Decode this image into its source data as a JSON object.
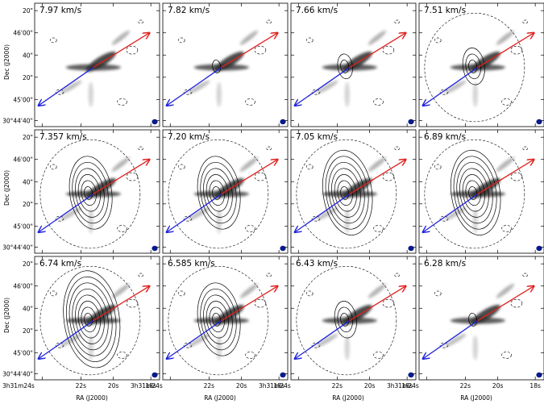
{
  "figure": {
    "panels": [
      {
        "velocity": "7.97 km/s",
        "contour_level": 0
      },
      {
        "velocity": "7.82 km/s",
        "contour_level": 1
      },
      {
        "velocity": "7.66 km/s",
        "contour_level": 2
      },
      {
        "velocity": "7.51 km/s",
        "contour_level": 3
      },
      {
        "velocity": "7.357 km/s",
        "contour_level": 6
      },
      {
        "velocity": "7.20 km/s",
        "contour_level": 6
      },
      {
        "velocity": "7.05 km/s",
        "contour_level": 7
      },
      {
        "velocity": "6.89 km/s",
        "contour_level": 7
      },
      {
        "velocity": "6.74 km/s",
        "contour_level": 8
      },
      {
        "velocity": "6.585 km/s",
        "contour_level": 6
      },
      {
        "velocity": "6.43 km/s",
        "contour_level": 3
      },
      {
        "velocity": "6.28 km/s",
        "contour_level": 1
      }
    ],
    "y_axis": {
      "label": "Dec (J2000)",
      "ticks": [
        "20\"",
        "46'00\"",
        "40\"",
        "20\"",
        "45'00\"",
        "30°44'40\""
      ]
    },
    "x_axis": {
      "label": "RA (J2000)",
      "ticks": [
        "3h31m24s",
        "22s",
        "20s",
        "18s"
      ]
    },
    "colors": {
      "redshifted_arrow": "#e0201e",
      "blueshifted_arrow": "#1f23d8",
      "beam": "#0a1a8c",
      "grayscale_emission": "#2a2a2a"
    }
  }
}
